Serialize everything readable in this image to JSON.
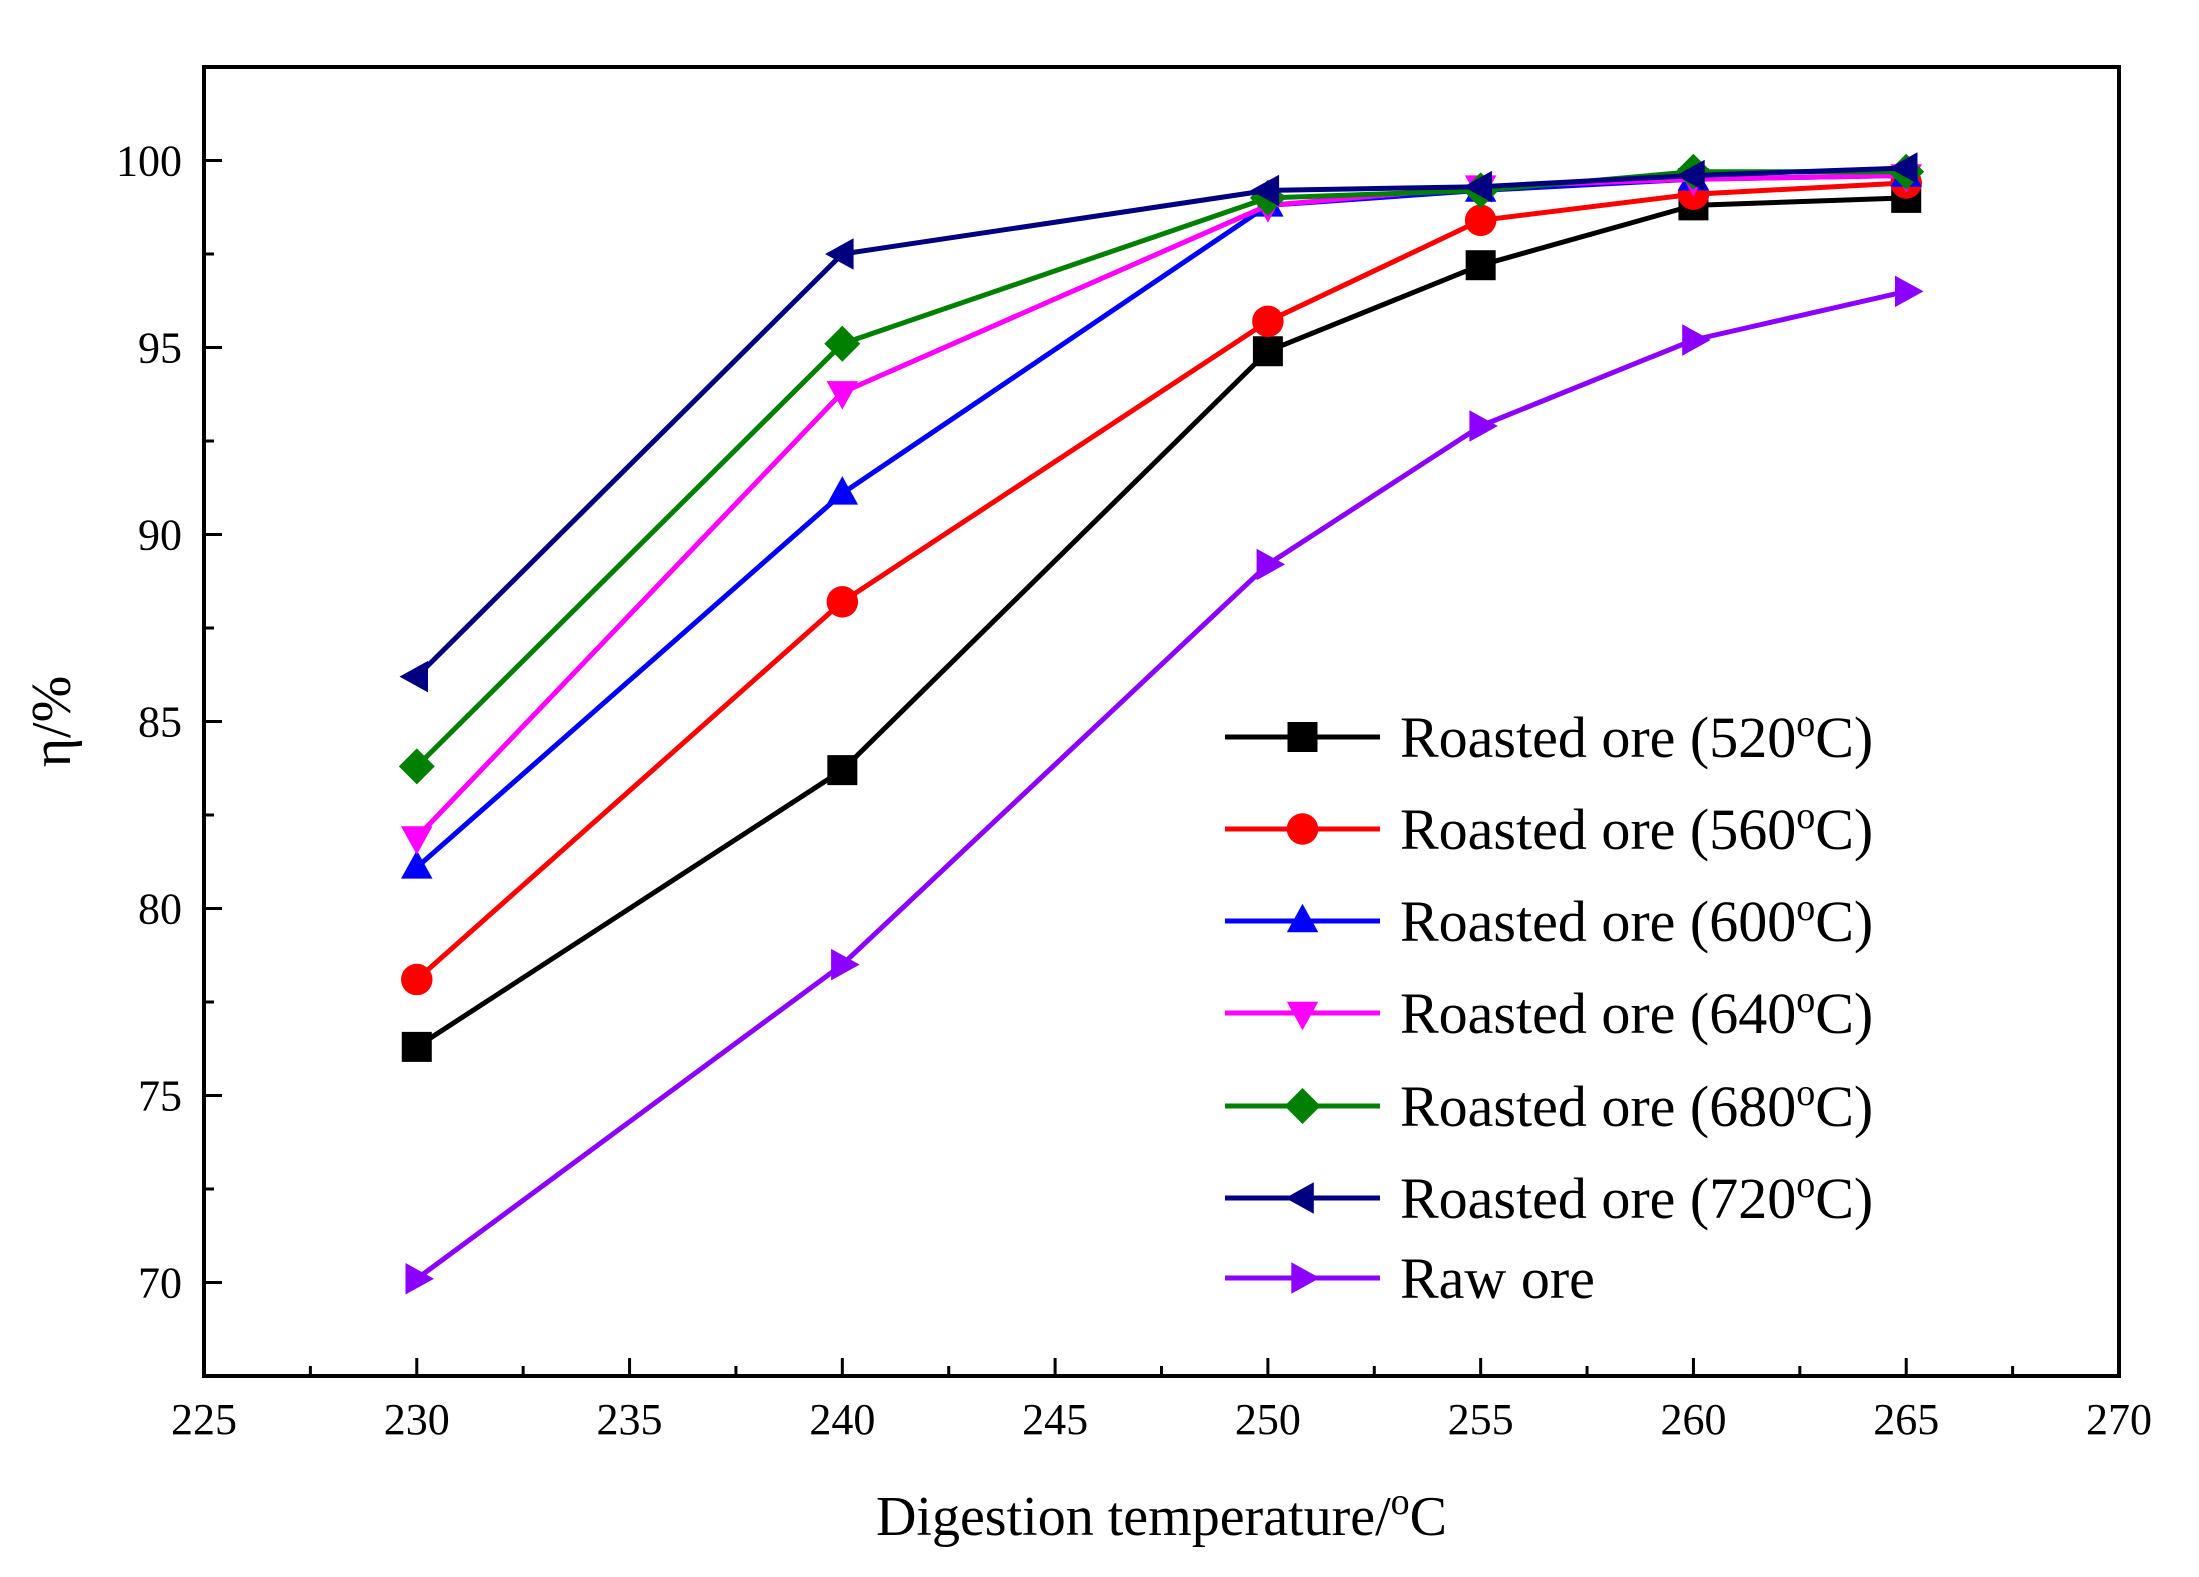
{
  "chart_data": {
    "type": "line",
    "title": "",
    "xlabel": {
      "main": "Digestion temperature/",
      "sup": "o",
      "tail": "C"
    },
    "ylabel": "η/%",
    "xlim": [
      225,
      270
    ],
    "ylim": [
      67.5,
      102.5
    ],
    "x_major_ticks": [
      225,
      230,
      235,
      240,
      245,
      250,
      255,
      260,
      265,
      270
    ],
    "x_tick_labels": [
      "225",
      "230",
      "235",
      "240",
      "245",
      "250",
      "255",
      "260",
      "265",
      "270"
    ],
    "y_major_ticks": [
      70,
      75,
      80,
      85,
      90,
      95,
      100
    ],
    "y_tick_labels": [
      "70",
      "75",
      "80",
      "85",
      "90",
      "95",
      "100"
    ],
    "grid": false,
    "legend_position": "bottom-right",
    "x": [
      230,
      240,
      250,
      255,
      260,
      265
    ],
    "series": [
      {
        "name": "Roasted ore (520",
        "name_sup": "o",
        "name_tail": "C)",
        "color": "#000000",
        "marker": "square",
        "values": [
          76.3,
          83.7,
          94.9,
          97.2,
          98.8,
          99.0
        ]
      },
      {
        "name": "Roasted ore (560",
        "name_sup": "o",
        "name_tail": "C)",
        "color": "#ff0000",
        "marker": "circle",
        "values": [
          78.1,
          88.2,
          95.7,
          98.4,
          99.1,
          99.4
        ]
      },
      {
        "name": "Roasted ore (600",
        "name_sup": "o",
        "name_tail": "C)",
        "color": "#0000ff",
        "marker": "triangle-up",
        "values": [
          81.1,
          91.1,
          98.8,
          99.2,
          99.5,
          99.6
        ]
      },
      {
        "name": "Roasted ore (640",
        "name_sup": "o",
        "name_tail": "C)",
        "color": "#ff00ff",
        "marker": "triangle-down",
        "values": [
          81.9,
          93.8,
          98.8,
          99.3,
          99.5,
          99.6
        ]
      },
      {
        "name": "Roasted ore (680",
        "name_sup": "o",
        "name_tail": "C)",
        "color": "#008000",
        "marker": "diamond",
        "values": [
          83.8,
          95.1,
          99.0,
          99.2,
          99.7,
          99.7
        ]
      },
      {
        "name": "Roasted ore (720",
        "name_sup": "o",
        "name_tail": "C)",
        "color": "#000080",
        "marker": "triangle-left",
        "values": [
          86.2,
          97.5,
          99.2,
          99.3,
          99.6,
          99.8
        ]
      },
      {
        "name": "Raw ore",
        "name_sup": "",
        "name_tail": "",
        "color": "#8b00ff",
        "marker": "triangle-right",
        "values": [
          70.1,
          78.5,
          89.2,
          92.9,
          95.2,
          96.5
        ]
      }
    ]
  }
}
